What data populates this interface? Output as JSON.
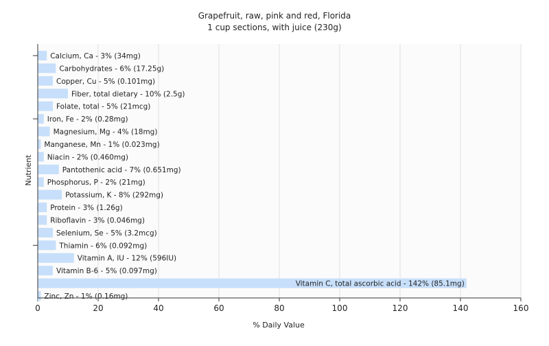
{
  "chart_data": {
    "type": "bar",
    "orientation": "horizontal",
    "title": "Grapefruit, raw, pink and red, Florida",
    "subtitle": "1 cup sections, with juice (230g)",
    "xlabel": "% Daily Value",
    "ylabel": "Nutrient",
    "xlim": [
      0,
      160
    ],
    "xticks": [
      "0",
      "20",
      "40",
      "60",
      "80",
      "100",
      "120",
      "140",
      "160"
    ],
    "grid": true,
    "bar_color": "#c7dffa",
    "categories": [
      "Calcium, Ca",
      "Carbohydrates",
      "Copper, Cu",
      "Fiber, total dietary",
      "Folate, total",
      "Iron, Fe",
      "Magnesium, Mg",
      "Manganese, Mn",
      "Niacin",
      "Pantothenic acid",
      "Phosphorus, P",
      "Potassium, K",
      "Protein",
      "Riboflavin",
      "Selenium, Se",
      "Thiamin",
      "Vitamin A, IU",
      "Vitamin B-6",
      "Vitamin C, total ascorbic acid",
      "Zinc, Zn"
    ],
    "values": [
      3,
      6,
      5,
      10,
      5,
      2,
      4,
      1,
      2,
      7,
      2,
      8,
      3,
      3,
      5,
      6,
      12,
      5,
      142,
      1
    ],
    "data_labels": [
      "Calcium, Ca - 3% (34mg)",
      "Carbohydrates - 6% (17.25g)",
      "Copper, Cu - 5% (0.101mg)",
      "Fiber, total dietary - 10% (2.5g)",
      "Folate, total - 5% (21mcg)",
      "Iron, Fe - 2% (0.28mg)",
      "Magnesium, Mg - 4% (18mg)",
      "Manganese, Mn - 1% (0.023mg)",
      "Niacin - 2% (0.460mg)",
      "Pantothenic acid - 7% (0.651mg)",
      "Phosphorus, P - 2% (21mg)",
      "Potassium, K - 8% (292mg)",
      "Protein - 3% (1.26g)",
      "Riboflavin - 3% (0.046mg)",
      "Selenium, Se - 5% (3.2mcg)",
      "Thiamin - 6% (0.092mg)",
      "Vitamin A, IU - 12% (596IU)",
      "Vitamin B-6 - 5% (0.097mg)",
      "Vitamin C, total ascorbic acid - 142% (85.1mg)",
      "Zinc, Zn - 1% (0.16mg)"
    ]
  }
}
